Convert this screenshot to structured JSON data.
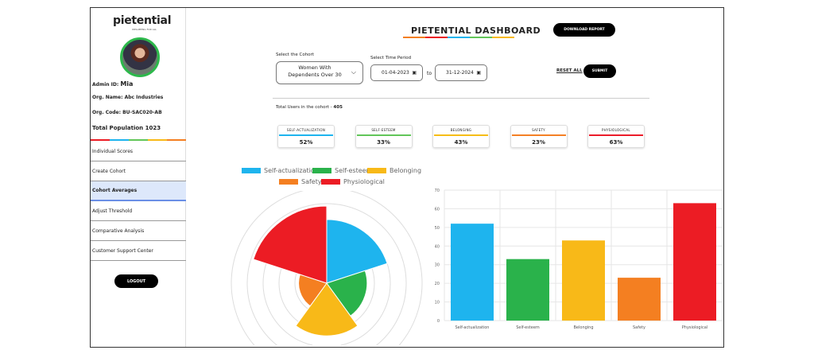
{
  "sidebar": {
    "logo": "pietential",
    "tagline": "WELLBEING FOR ALL",
    "admin_label": "Admin ID:",
    "admin_value": "Mia",
    "org_name": "Org. Name: Abc Industries",
    "org_code": "Org. Code: BU-SAC020-AB",
    "population_label": "Total Population",
    "population_value": "1023",
    "items": [
      {
        "label": "Individual Scores"
      },
      {
        "label": "Create Cohort"
      },
      {
        "label": "Cohort Averages",
        "active": true
      },
      {
        "label": "Adjust Threshold"
      },
      {
        "label": "Comparative Analysis"
      },
      {
        "label": "Customer Support Center"
      }
    ],
    "logout": "LOGOUT"
  },
  "header": {
    "title": "PIETENTIAL  DASHBOARD",
    "download": "DOWNLOAD REPORT"
  },
  "filters": {
    "cohort_label": "Select the Cohort",
    "cohort_value": "Women With Dependents Over 30",
    "time_label": "Select Time Period",
    "from": "01-04-2023",
    "to_label": "to",
    "to": "31-12-2024",
    "reset": "RESET ALL",
    "submit": "SUBMIT"
  },
  "total_users": {
    "label": "Total Users in the cohort - ",
    "value": "405"
  },
  "cards": [
    {
      "label": "SELF-ACTUALIZATION",
      "value": "52%",
      "color": "#1eb4ee"
    },
    {
      "label": "SELF-ESTEEM",
      "value": "33%",
      "color": "#62c659"
    },
    {
      "label": "BELONGING",
      "value": "43%",
      "color": "#f6bd17"
    },
    {
      "label": "SAFETY",
      "value": "23%",
      "color": "#f48025"
    },
    {
      "label": "PHYSIOLOGICAL",
      "value": "63%",
      "color": "#ec1c2a"
    }
  ],
  "chart_data": [
    {
      "type": "polarArea",
      "categories": [
        "Self-actualization",
        "Self-esteem",
        "Belonging",
        "Safety",
        "Physiological"
      ],
      "values": [
        52,
        33,
        43,
        23,
        63
      ],
      "colors": [
        "#1eb4ee",
        "#2ab24b",
        "#f8b918",
        "#f47f21",
        "#ec1c24"
      ],
      "legend": "top"
    },
    {
      "type": "bar",
      "categories": [
        "Self-actualization",
        "Self-esteem",
        "Belonging",
        "Safety",
        "Physiological"
      ],
      "values": [
        52,
        33,
        43,
        23,
        63
      ],
      "colors": [
        "#1eb4ee",
        "#2ab24b",
        "#f8b918",
        "#f47f21",
        "#ec1c24"
      ],
      "ylim": [
        0,
        70
      ],
      "yticks": [
        0,
        10,
        20,
        30,
        40,
        50,
        60,
        70
      ],
      "grid": true
    }
  ]
}
